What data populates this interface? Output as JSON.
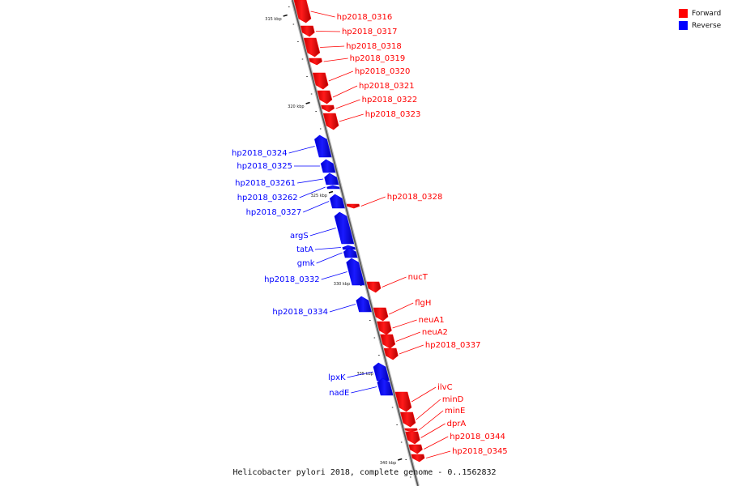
{
  "caption": "Helicobacter pylori 2018, complete genome - 0..1562832",
  "legend": {
    "forward_label": "Forward",
    "reverse_label": "Reverse",
    "forward_color": "#ff0000",
    "reverse_color": "#0000ff"
  },
  "ticks": [
    {
      "kbp": 315,
      "label": "315 kbp"
    },
    {
      "kbp": 320,
      "label": "320 kbp"
    },
    {
      "kbp": 325,
      "label": "325 kbp"
    },
    {
      "kbp": 330,
      "label": "330 kbp"
    },
    {
      "kbp": 335,
      "label": "335 kbp"
    },
    {
      "kbp": 340,
      "label": "340 kbp"
    }
  ],
  "genes": [
    {
      "name": "hp2018_0316",
      "strand": "forward"
    },
    {
      "name": "hp2018_0317",
      "strand": "forward"
    },
    {
      "name": "hp2018_0318",
      "strand": "forward"
    },
    {
      "name": "hp2018_0319",
      "strand": "forward"
    },
    {
      "name": "hp2018_0320",
      "strand": "forward"
    },
    {
      "name": "hp2018_0321",
      "strand": "forward"
    },
    {
      "name": "hp2018_0322",
      "strand": "forward"
    },
    {
      "name": "hp2018_0323",
      "strand": "forward"
    },
    {
      "name": "hp2018_0324",
      "strand": "reverse"
    },
    {
      "name": "hp2018_0325",
      "strand": "reverse"
    },
    {
      "name": "hp2018_03261",
      "strand": "reverse"
    },
    {
      "name": "hp2018_03262",
      "strand": "reverse"
    },
    {
      "name": "hp2018_0327",
      "strand": "reverse"
    },
    {
      "name": "hp2018_0328",
      "strand": "forward"
    },
    {
      "name": "argS",
      "strand": "reverse"
    },
    {
      "name": "tatA",
      "strand": "reverse"
    },
    {
      "name": "gmk",
      "strand": "reverse"
    },
    {
      "name": "hp2018_0332",
      "strand": "reverse"
    },
    {
      "name": "nucT",
      "strand": "forward"
    },
    {
      "name": "hp2018_0334",
      "strand": "reverse"
    },
    {
      "name": "flgH",
      "strand": "forward"
    },
    {
      "name": "neuA1",
      "strand": "forward"
    },
    {
      "name": "neuA2",
      "strand": "forward"
    },
    {
      "name": "hp2018_0337",
      "strand": "forward"
    },
    {
      "name": "lpxK",
      "strand": "reverse"
    },
    {
      "name": "nadE",
      "strand": "reverse"
    },
    {
      "name": "ilvC",
      "strand": "forward"
    },
    {
      "name": "minD",
      "strand": "forward"
    },
    {
      "name": "minE",
      "strand": "forward"
    },
    {
      "name": "dprA",
      "strand": "forward"
    },
    {
      "name": "hp2018_0344",
      "strand": "forward"
    },
    {
      "name": "hp2018_0345",
      "strand": "forward"
    }
  ]
}
